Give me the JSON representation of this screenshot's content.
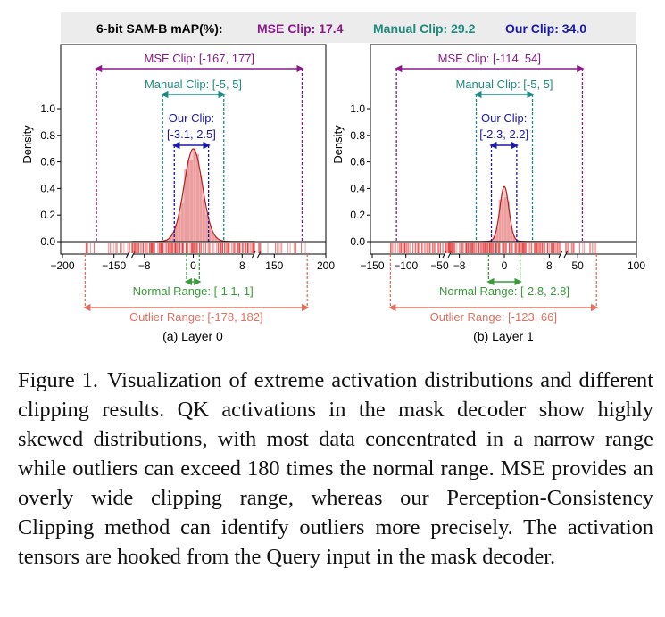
{
  "header": {
    "title": "6-bit SAM-B mAP(%):",
    "mse": "MSE Clip: 17.4",
    "manual": "Manual Clip: 29.2",
    "ours": "Our Clip: 34.0"
  },
  "colors": {
    "mse": "#8a1a8a",
    "manual": "#1f8a80",
    "ours": "#1a1aa8",
    "normal": "#3a9a3a",
    "outlier": "#e07060",
    "kde": "#b32020",
    "hist": "#e88b8b",
    "rug": "#e03030",
    "header_bg": "#ececec"
  },
  "chart_data": [
    {
      "type": "area",
      "panel_label": "(a) Layer 0",
      "ylabel": "Density",
      "y_ticks": [
        "0.0",
        "0.2",
        "0.4",
        "0.6",
        "0.8",
        "1.0"
      ],
      "ylim": [
        0,
        1.0
      ],
      "x_tick_labels": [
        "−200",
        "−150",
        "−8",
        "0",
        "8",
        "150",
        "200"
      ],
      "x_segments": [
        {
          "range": [
            -200,
            -135
          ],
          "ticks": [
            -200,
            -150
          ]
        },
        {
          "range": [
            -10,
            10
          ],
          "ticks": [
            -8,
            0,
            8
          ]
        },
        {
          "range": [
            135,
            200
          ],
          "ticks": [
            150,
            200
          ]
        }
      ],
      "kde_peak": 0.69,
      "kde_peak_x": 0.0,
      "kde_sigma": 1.5,
      "mse_clip": {
        "label": "MSE Clip: [-167, 177]",
        "range": [
          -167,
          177
        ]
      },
      "manual_clip": {
        "label": "Manual Clip: [-5, 5]",
        "range": [
          -5,
          5
        ]
      },
      "our_clip": {
        "label_line1": "Our Clip:",
        "label_line2": "[-3.1, 2.5]",
        "range": [
          -3.1,
          2.5
        ]
      },
      "normal_range": {
        "label": "Normal Range: [-1.1, 1]",
        "range": [
          -1.1,
          1
        ]
      },
      "outlier_range": {
        "label": "Outlier Range: [-178, 182]",
        "range": [
          -178,
          182
        ]
      }
    },
    {
      "type": "area",
      "panel_label": "(b) Layer 1",
      "ylabel": "Density",
      "y_ticks": [
        "0.0",
        "0.2",
        "0.4",
        "0.6",
        "0.8",
        "1.0"
      ],
      "ylim": [
        0,
        1.0
      ],
      "x_tick_labels": [
        "−150",
        "−100",
        "−50",
        "−8",
        "0",
        "8",
        "50",
        "100"
      ],
      "x_segments": [
        {
          "range": [
            -150,
            -40
          ],
          "ticks": [
            -150,
            -100,
            -50
          ]
        },
        {
          "range": [
            -10,
            10
          ],
          "ticks": [
            -8,
            0,
            8
          ]
        },
        {
          "range": [
            40,
            100
          ],
          "ticks": [
            50,
            100
          ]
        }
      ],
      "kde_peak": 0.41,
      "kde_peak_x": 0.0,
      "kde_sigma": 0.8,
      "mse_clip": {
        "label": "MSE Clip: [-114, 54]",
        "range": [
          -114,
          54
        ]
      },
      "manual_clip": {
        "label": "Manual Clip: [-5, 5]",
        "range": [
          -5,
          5
        ]
      },
      "our_clip": {
        "label_line1": "Our Clip:",
        "label_line2": "[-2.3, 2.2]",
        "range": [
          -2.3,
          2.2
        ]
      },
      "normal_range": {
        "label": "Normal Range: [-2.8, 2.8]",
        "range": [
          -2.8,
          2.8
        ]
      },
      "outlier_range": {
        "label": "Outlier Range: [-123, 66]",
        "range": [
          -123,
          66
        ]
      }
    }
  ],
  "caption": {
    "label": "Figure 1.",
    "text": "Visualization of extreme activation distributions and different clipping results. QK activations in the mask decoder show highly skewed distributions, with most data concentrated in a narrow range while outliers can exceed 180 times the normal range. MSE provides an overly wide clipping range, whereas our Perception-Consistency Clipping method can identify outliers more precisely. The activation tensors are hooked from the Query input in the mask decoder."
  }
}
